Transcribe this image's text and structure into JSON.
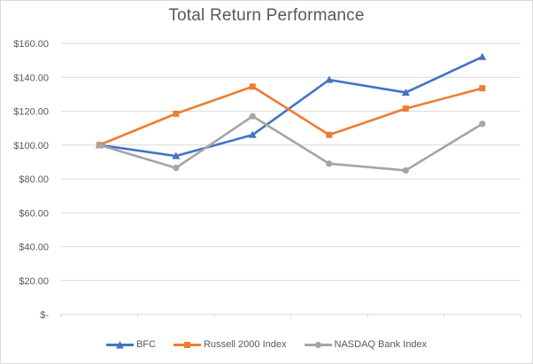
{
  "chart_data": {
    "type": "line",
    "title": "Total Return Performance",
    "x_points": 6,
    "x_tick_labels": [],
    "ylim": [
      0,
      160
    ],
    "y_ticks": [
      {
        "label": "$160.00",
        "value": 160
      },
      {
        "label": "$140.00",
        "value": 140
      },
      {
        "label": "$120.00",
        "value": 120
      },
      {
        "label": "$100.00",
        "value": 100
      },
      {
        "label": "$80.00",
        "value": 80
      },
      {
        "label": "$60.00",
        "value": 60
      },
      {
        "label": "$40.00",
        "value": 40
      },
      {
        "label": "$20.00",
        "value": 20
      },
      {
        "label": "$-",
        "value": 0
      }
    ],
    "series": [
      {
        "name": "BFC",
        "color": "#4472C4",
        "marker": "triangle",
        "values": [
          100,
          93.5,
          106,
          138.5,
          131,
          152
        ]
      },
      {
        "name": "Russell 2000 Index",
        "color": "#ED7D31",
        "marker": "square",
        "values": [
          100,
          118.5,
          134.5,
          106,
          121.5,
          133.5
        ]
      },
      {
        "name": "NASDAQ Bank Index",
        "color": "#A5A5A5",
        "marker": "circle",
        "values": [
          100,
          86.5,
          117,
          89,
          85,
          112.5
        ]
      }
    ],
    "legend_position": "bottom",
    "grid": true,
    "style": {
      "background": "#FFFFFF",
      "border": "#D9D9D9",
      "gridline": "#D9D9D9",
      "axis": "#D9D9D9",
      "text": "#595959",
      "title_color": "#595959"
    }
  }
}
